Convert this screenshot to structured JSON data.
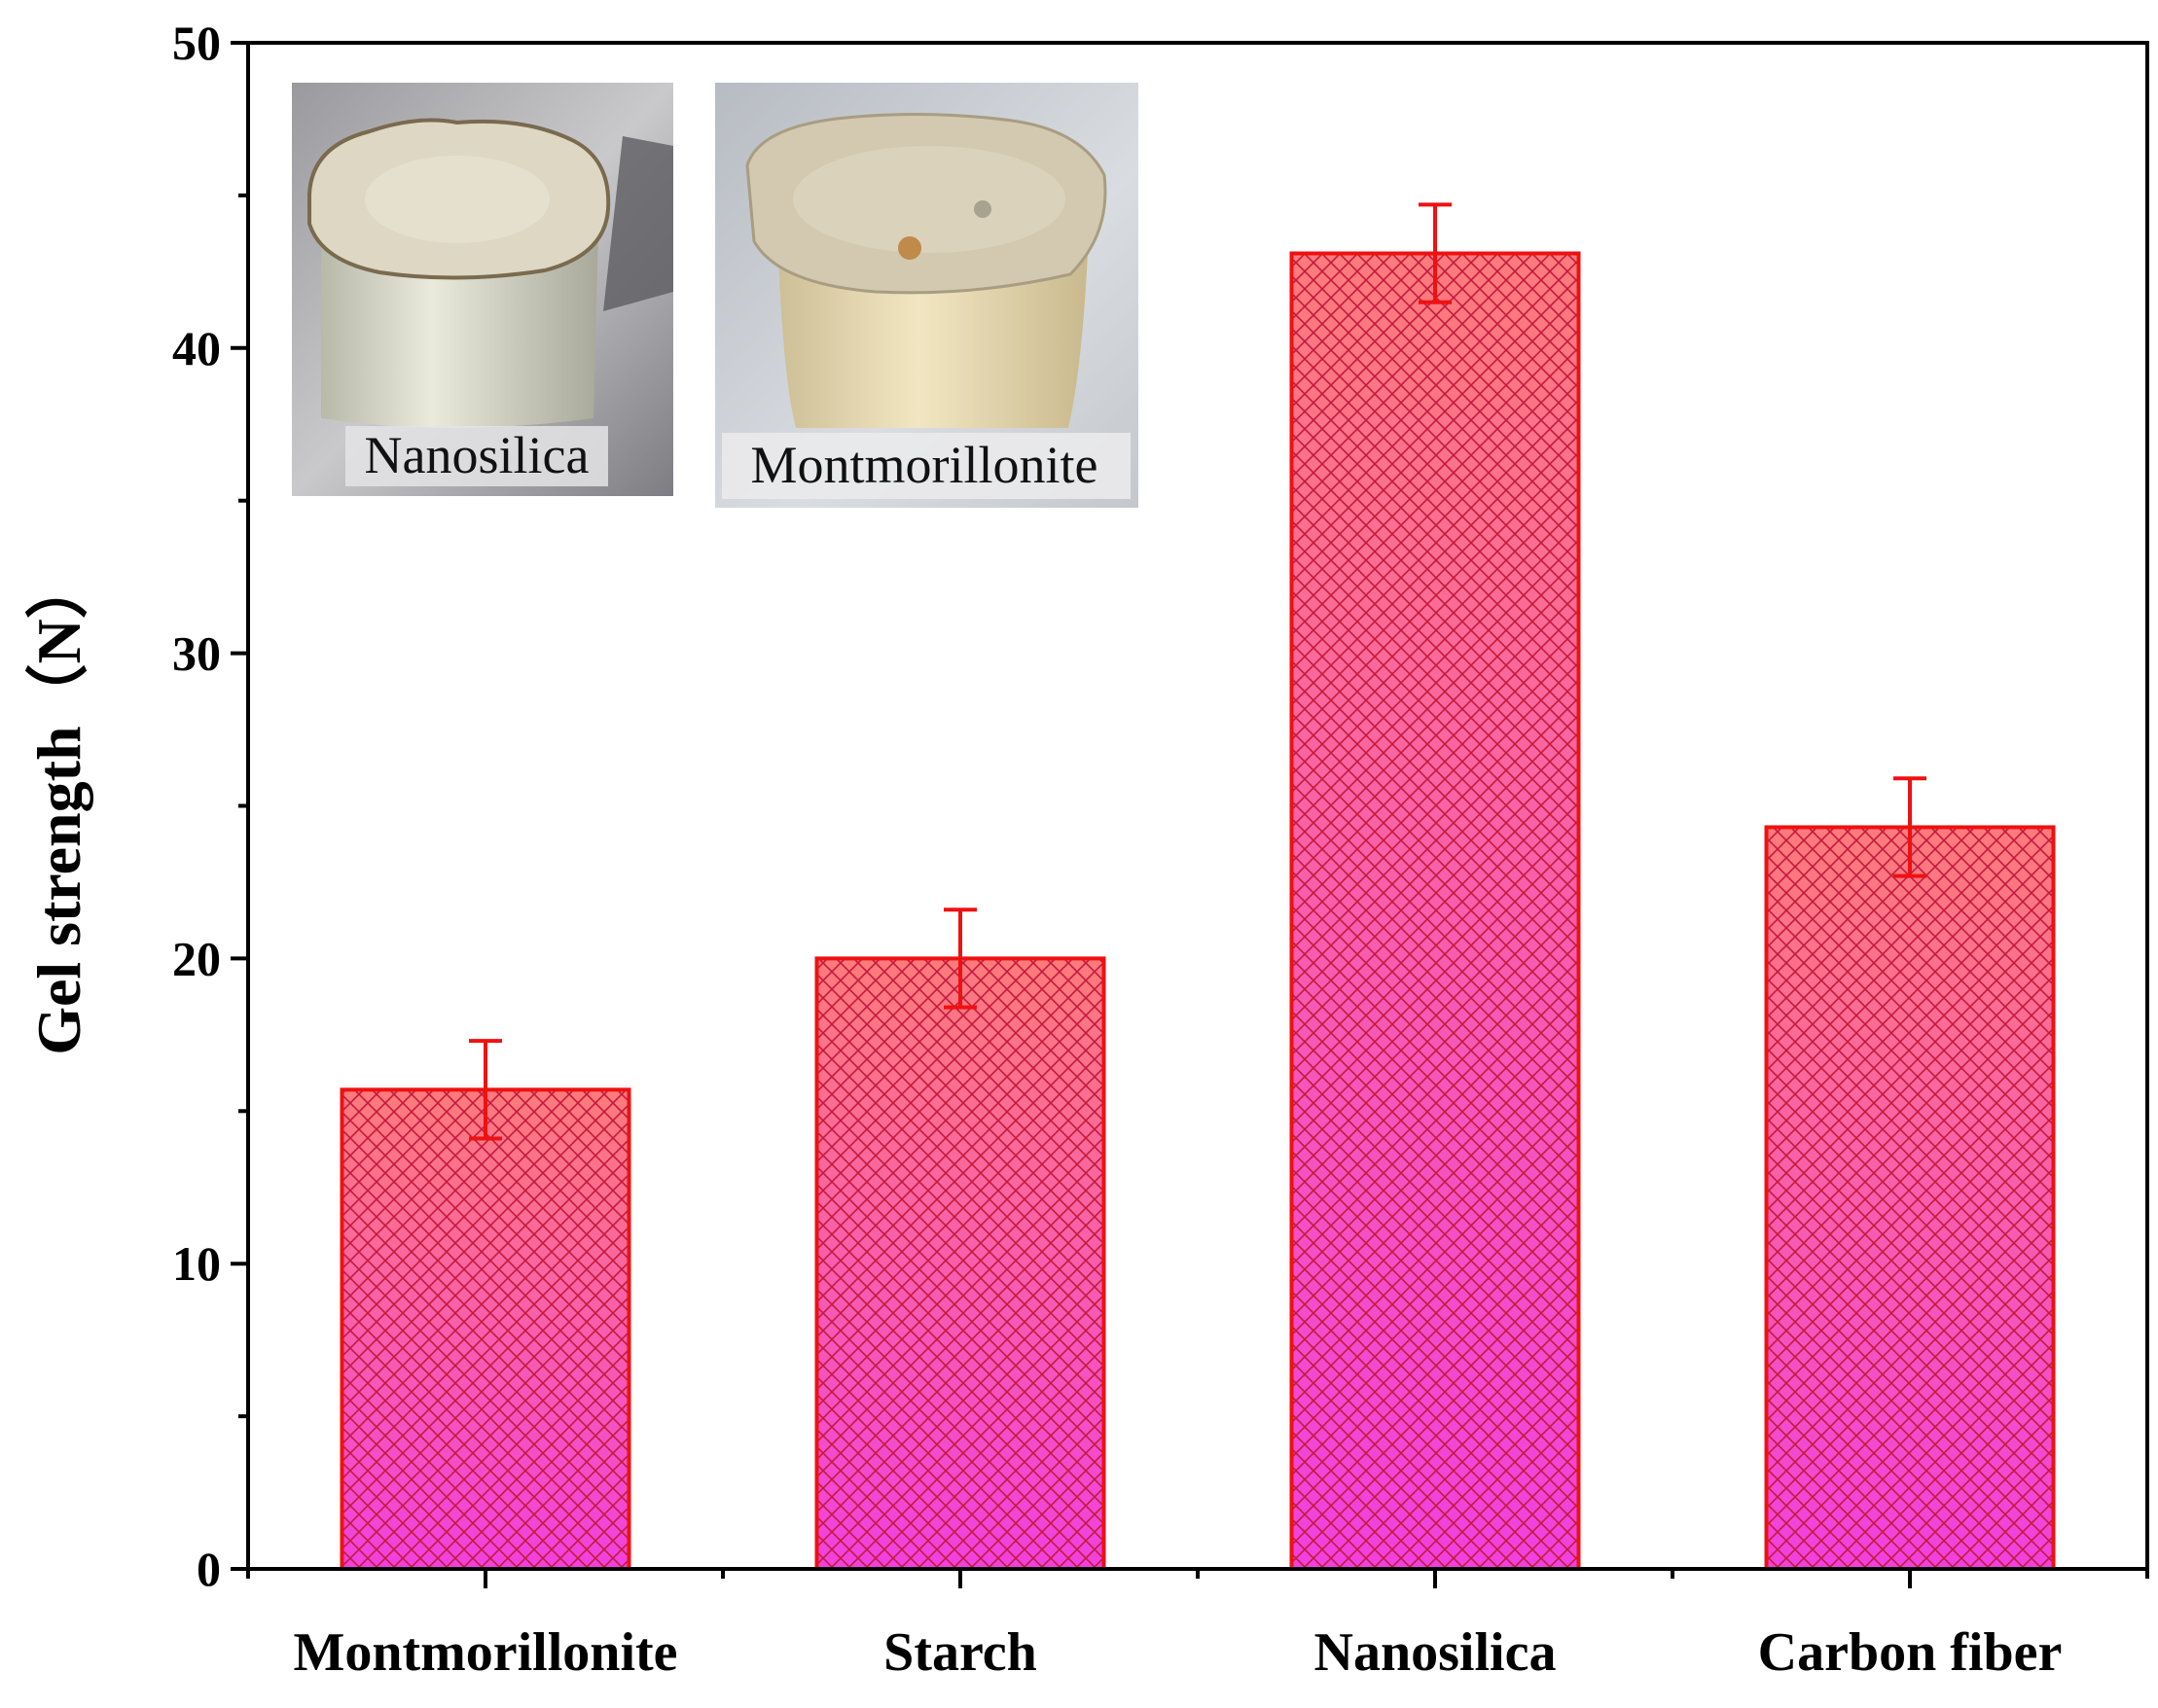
{
  "chart_data": {
    "type": "bar",
    "title": "",
    "xlabel": "",
    "ylabel": "Gel strength（N）",
    "ylim": [
      0,
      50
    ],
    "yticks": [
      0,
      10,
      20,
      30,
      40,
      50
    ],
    "categories": [
      "Montmorillonite",
      "Starch",
      "Nanosilica",
      "Carbon fiber"
    ],
    "values": [
      15.7,
      20.0,
      43.1,
      24.3
    ],
    "errors": [
      1.6,
      1.6,
      1.6,
      1.6
    ],
    "grid": false,
    "legend": "none",
    "colors": {
      "bar_stroke": "#ee1111",
      "bar_fill_top": "#ff7b7b",
      "bar_fill_bottom": "#f040e0",
      "hatch": "#c41a3c",
      "error_bar": "#ee1111",
      "axis": "#000000"
    },
    "inset_labels": [
      "Nanosilica",
      "Montmorillonite"
    ]
  }
}
